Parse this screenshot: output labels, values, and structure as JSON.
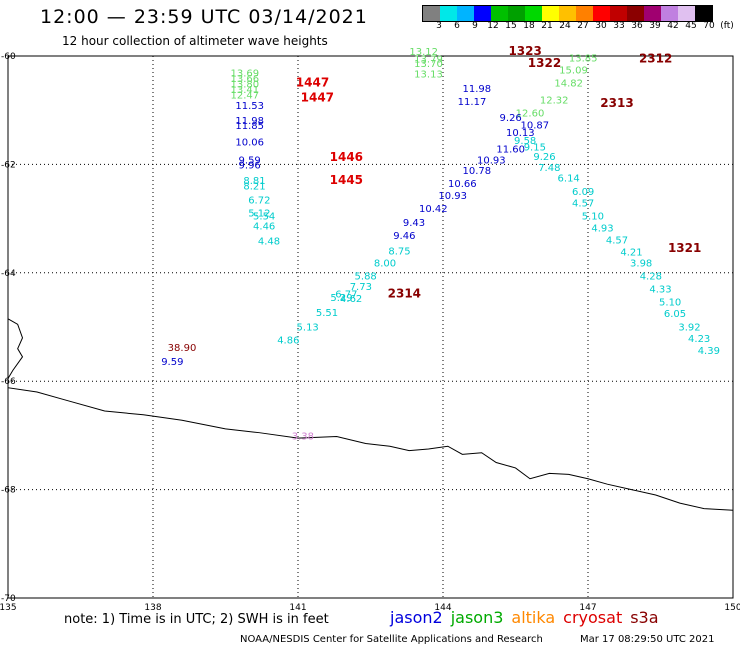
{
  "header": {
    "title": "12:00 — 23:59 UTC 03/14/2021",
    "subtitle": "12 hour collection of altimeter wave heights"
  },
  "colorbar": {
    "colors": [
      "#808080",
      "#00e8e8",
      "#00b4ff",
      "#0000ff",
      "#00c000",
      "#00a000",
      "#00d800",
      "#ffff00",
      "#ffc000",
      "#ff8000",
      "#ff0000",
      "#c00000",
      "#8b0000",
      "#a00070",
      "#c080e0",
      "#e0c0f0",
      "#000000"
    ],
    "labels": [
      "3",
      "6",
      "9",
      "12",
      "15",
      "18",
      "21",
      "24",
      "27",
      "30",
      "33",
      "36",
      "39",
      "42",
      "45",
      "70",
      "(ft)"
    ]
  },
  "axes": {
    "x_labels": [
      "135",
      "138",
      "141",
      "144",
      "147",
      "150"
    ],
    "y_labels": [
      "-60",
      "-62",
      "-64",
      "-66",
      "-68",
      "-70"
    ],
    "lon_range": [
      135,
      150
    ],
    "lat_range": [
      -70,
      -60
    ]
  },
  "tracks": [
    {
      "satellite": "jason3",
      "color": "#66dd66",
      "points": [
        {
          "lon": 139.9,
          "lat": -60.38,
          "v": "13.69"
        },
        {
          "lon": 139.9,
          "lat": -60.48,
          "v": "13.66"
        },
        {
          "lon": 139.9,
          "lat": -60.58,
          "v": "13.80"
        },
        {
          "lon": 139.9,
          "lat": -60.68,
          "v": "13.41"
        },
        {
          "lon": 139.9,
          "lat": -60.78,
          "v": "12.47"
        },
        {
          "lon": 143.6,
          "lat": -59.98,
          "v": "13.12"
        },
        {
          "lon": 143.7,
          "lat": -60.12,
          "v": "13.79"
        },
        {
          "lon": 143.7,
          "lat": -60.2,
          "v": "13.70"
        },
        {
          "lon": 143.7,
          "lat": -60.4,
          "v": "13.13"
        },
        {
          "lon": 146.9,
          "lat": -60.1,
          "v": "13.85"
        },
        {
          "lon": 146.7,
          "lat": -60.32,
          "v": "15.09"
        },
        {
          "lon": 146.6,
          "lat": -60.56,
          "v": "14.82"
        },
        {
          "lon": 146.3,
          "lat": -60.88,
          "v": "12.32"
        },
        {
          "lon": 145.8,
          "lat": -61.12,
          "v": "12.60"
        }
      ]
    },
    {
      "satellite": "jason2",
      "color": "#0000cc",
      "points": [
        {
          "lon": 140.0,
          "lat": -60.98,
          "v": "11.53"
        },
        {
          "lon": 140.0,
          "lat": -61.25,
          "v": "11.98"
        },
        {
          "lon": 140.0,
          "lat": -61.35,
          "v": "11.85"
        },
        {
          "lon": 140.0,
          "lat": -61.65,
          "v": "10.06"
        },
        {
          "lon": 140.0,
          "lat": -61.98,
          "v": "9.59"
        },
        {
          "lon": 140.0,
          "lat": -62.08,
          "v": "9.96"
        },
        {
          "lon": 144.7,
          "lat": -60.66,
          "v": "11.98"
        },
        {
          "lon": 144.6,
          "lat": -60.9,
          "v": "11.17"
        },
        {
          "lon": 145.4,
          "lat": -61.2,
          "v": "9.26"
        },
        {
          "lon": 145.9,
          "lat": -61.34,
          "v": "10.87"
        },
        {
          "lon": 145.6,
          "lat": -61.48,
          "v": "10.13"
        },
        {
          "lon": 145.4,
          "lat": -61.78,
          "v": "11.60"
        },
        {
          "lon": 145.0,
          "lat": -61.98,
          "v": "10.93"
        },
        {
          "lon": 144.7,
          "lat": -62.18,
          "v": "10.78"
        },
        {
          "lon": 144.4,
          "lat": -62.42,
          "v": "10.66"
        },
        {
          "lon": 144.2,
          "lat": -62.64,
          "v": "10.93"
        },
        {
          "lon": 143.8,
          "lat": -62.88,
          "v": "10.42"
        },
        {
          "lon": 143.4,
          "lat": -63.14,
          "v": "9.43"
        },
        {
          "lon": 143.2,
          "lat": -63.38,
          "v": "9.46"
        },
        {
          "lon": 138.4,
          "lat": -65.7,
          "v": "9.59"
        }
      ]
    },
    {
      "satellite": "s3a",
      "color": "#00cccc",
      "points": [
        {
          "lon": 145.7,
          "lat": -61.62,
          "v": "9.58"
        },
        {
          "lon": 145.9,
          "lat": -61.74,
          "v": "9.15"
        },
        {
          "lon": 146.1,
          "lat": -61.92,
          "v": "9.26"
        },
        {
          "lon": 146.2,
          "lat": -62.12,
          "v": "7.48"
        },
        {
          "lon": 146.6,
          "lat": -62.32,
          "v": "6.14"
        },
        {
          "lon": 146.9,
          "lat": -62.56,
          "v": "6.09"
        },
        {
          "lon": 146.9,
          "lat": -62.78,
          "v": "4.57"
        },
        {
          "lon": 147.1,
          "lat": -63.02,
          "v": "5.10"
        },
        {
          "lon": 147.3,
          "lat": -63.24,
          "v": "4.93"
        },
        {
          "lon": 147.6,
          "lat": -63.46,
          "v": "4.57"
        },
        {
          "lon": 147.9,
          "lat": -63.68,
          "v": "4.21"
        },
        {
          "lon": 148.1,
          "lat": -63.88,
          "v": "3.98"
        },
        {
          "lon": 148.3,
          "lat": -64.12,
          "v": "4.28"
        },
        {
          "lon": 148.5,
          "lat": -64.36,
          "v": "4.33"
        },
        {
          "lon": 148.7,
          "lat": -64.6,
          "v": "5.10"
        },
        {
          "lon": 148.8,
          "lat": -64.82,
          "v": "6.05"
        },
        {
          "lon": 149.1,
          "lat": -65.06,
          "v": "3.92"
        },
        {
          "lon": 149.3,
          "lat": -65.28,
          "v": "4.23"
        },
        {
          "lon": 149.5,
          "lat": -65.5,
          "v": "4.39"
        },
        {
          "lon": 140.1,
          "lat": -62.36,
          "v": "8.81"
        },
        {
          "lon": 140.1,
          "lat": -62.46,
          "v": "8.21"
        },
        {
          "lon": 140.2,
          "lat": -62.72,
          "v": "6.72"
        },
        {
          "lon": 140.2,
          "lat": -62.96,
          "v": "5.12"
        },
        {
          "lon": 140.3,
          "lat": -63.02,
          "v": "5.54"
        },
        {
          "lon": 140.3,
          "lat": -63.2,
          "v": "4.46"
        },
        {
          "lon": 140.4,
          "lat": -63.48,
          "v": "4.48"
        },
        {
          "lon": 143.1,
          "lat": -63.66,
          "v": "8.75"
        },
        {
          "lon": 142.8,
          "lat": -63.88,
          "v": "8.00"
        },
        {
          "lon": 142.4,
          "lat": -64.12,
          "v": "5.88"
        },
        {
          "lon": 142.3,
          "lat": -64.32,
          "v": "7.73"
        },
        {
          "lon": 142.0,
          "lat": -64.46,
          "v": "6.77"
        },
        {
          "lon": 141.9,
          "lat": -64.52,
          "v": "5.29"
        },
        {
          "lon": 142.1,
          "lat": -64.54,
          "v": "4.62"
        },
        {
          "lon": 141.6,
          "lat": -64.8,
          "v": "5.51"
        },
        {
          "lon": 141.2,
          "lat": -65.06,
          "v": "5.13"
        },
        {
          "lon": 140.8,
          "lat": -65.3,
          "v": "4.86"
        }
      ]
    },
    {
      "satellite": "cryosat",
      "color": "#dd0000",
      "points": [
        {
          "lon": 141.3,
          "lat": -60.56,
          "v": "1447"
        },
        {
          "lon": 141.4,
          "lat": -60.84,
          "v": "1447"
        },
        {
          "lon": 142.0,
          "lat": -61.94,
          "v": "1446"
        },
        {
          "lon": 142.0,
          "lat": -62.36,
          "v": "1445"
        }
      ]
    },
    {
      "satellite": "s3a",
      "color": "#880000",
      "points": [
        {
          "lon": 145.7,
          "lat": -59.98,
          "v": "1323"
        },
        {
          "lon": 146.1,
          "lat": -60.2,
          "v": "1322"
        },
        {
          "lon": 148.4,
          "lat": -60.12,
          "v": "2312"
        },
        {
          "lon": 147.6,
          "lat": -60.94,
          "v": "2313"
        },
        {
          "lon": 149.0,
          "lat": -63.62,
          "v": "1321"
        },
        {
          "lon": 143.2,
          "lat": -64.46,
          "v": "2314"
        },
        {
          "lon": 138.6,
          "lat": -65.44,
          "v": "38.90"
        }
      ]
    },
    {
      "satellite": "s3a",
      "color": "#d080d0",
      "points": [
        {
          "lon": 141.1,
          "lat": -67.08,
          "v": "3.38"
        }
      ]
    }
  ],
  "coastline": [
    [
      135.0,
      -64.85
    ],
    [
      135.2,
      -64.95
    ],
    [
      135.3,
      -65.2
    ],
    [
      135.2,
      -65.4
    ],
    [
      135.3,
      -65.55
    ],
    [
      135.1,
      -65.8
    ],
    [
      135.0,
      -65.95
    ],
    [
      135.0,
      -66.12
    ],
    [
      135.6,
      -66.2
    ],
    [
      136.2,
      -66.35
    ],
    [
      137.0,
      -66.55
    ],
    [
      137.8,
      -66.62
    ],
    [
      138.6,
      -66.72
    ],
    [
      139.5,
      -66.88
    ],
    [
      140.2,
      -66.95
    ],
    [
      141.0,
      -67.05
    ],
    [
      141.8,
      -67.02
    ],
    [
      142.4,
      -67.15
    ],
    [
      142.9,
      -67.2
    ],
    [
      143.3,
      -67.28
    ],
    [
      143.7,
      -67.25
    ],
    [
      144.1,
      -67.2
    ],
    [
      144.4,
      -67.35
    ],
    [
      144.8,
      -67.32
    ],
    [
      145.1,
      -67.5
    ],
    [
      145.5,
      -67.6
    ],
    [
      145.8,
      -67.8
    ],
    [
      146.2,
      -67.7
    ],
    [
      146.6,
      -67.72
    ],
    [
      147.0,
      -67.8
    ],
    [
      147.4,
      -67.9
    ],
    [
      147.9,
      -68.0
    ],
    [
      148.4,
      -68.1
    ],
    [
      148.9,
      -68.25
    ],
    [
      149.4,
      -68.35
    ],
    [
      150.0,
      -68.38
    ]
  ],
  "footer": {
    "note": "note: 1) Time is in UTC; 2) SWH is in feet",
    "legend": [
      {
        "label": "jason2",
        "color": "#0000dd"
      },
      {
        "label": "jason3",
        "color": "#00aa00"
      },
      {
        "label": "altika",
        "color": "#ff8800"
      },
      {
        "label": "cryosat",
        "color": "#dd0000"
      },
      {
        "label": "s3a",
        "color": "#880000"
      }
    ],
    "credit": "NOAA/NESDIS Center for Satellite Applications and Research",
    "timestamp": "Mar 17 08:29:50 UTC 2021"
  }
}
